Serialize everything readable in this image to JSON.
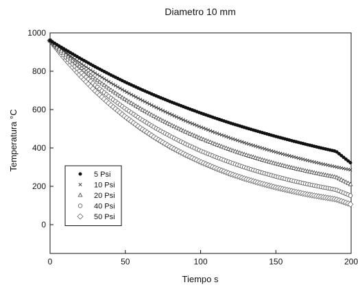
{
  "chart_data": {
    "type": "scatter",
    "title": "Diametro 10 mm",
    "xlabel": "Tiempo s",
    "ylabel": "Temperatura °C",
    "xlim": [
      0,
      200
    ],
    "ylim": [
      -150,
      1000
    ],
    "xticks": [
      0,
      50,
      100,
      150,
      200
    ],
    "yticks": [
      0,
      200,
      400,
      600,
      800,
      1000
    ],
    "grid": false,
    "legend_position": "bottom-left",
    "x": [
      0,
      10,
      20,
      30,
      40,
      50,
      60,
      70,
      80,
      90,
      100,
      110,
      120,
      130,
      140,
      150,
      160,
      170,
      180,
      190,
      200
    ],
    "series": [
      {
        "name": "5 Psi",
        "marker": "filled-circle",
        "values": [
          960,
          913,
          867,
          823,
          782,
          743,
          707,
          673,
          641,
          611,
          582,
          555,
          529,
          505,
          482,
          460,
          439,
          419,
          400,
          382,
          320
        ]
      },
      {
        "name": "10 Psi",
        "marker": "x",
        "values": [
          960,
          900,
          843,
          790,
          741,
          695,
          653,
          613,
          576,
          541,
          509,
          479,
          451,
          425,
          401,
          378,
          357,
          337,
          318,
          301,
          285
        ]
      },
      {
        "name": "20 Psi",
        "marker": "triangle",
        "values": [
          960,
          889,
          822,
          761,
          704,
          652,
          605,
          561,
          521,
          484,
          450,
          419,
          390,
          364,
          340,
          318,
          298,
          280,
          263,
          248,
          208
        ]
      },
      {
        "name": "40 Psi",
        "marker": "circle",
        "values": [
          960,
          876,
          798,
          727,
          663,
          605,
          552,
          504,
          461,
          421,
          385,
          353,
          324,
          297,
          273,
          251,
          231,
          213,
          197,
          182,
          150
        ]
      },
      {
        "name": "50 Psi",
        "marker": "diamond",
        "values": [
          960,
          864,
          777,
          697,
          626,
          562,
          504,
          452,
          405,
          364,
          327,
          294,
          264,
          238,
          215,
          194,
          176,
          159,
          145,
          132,
          105
        ]
      }
    ]
  }
}
